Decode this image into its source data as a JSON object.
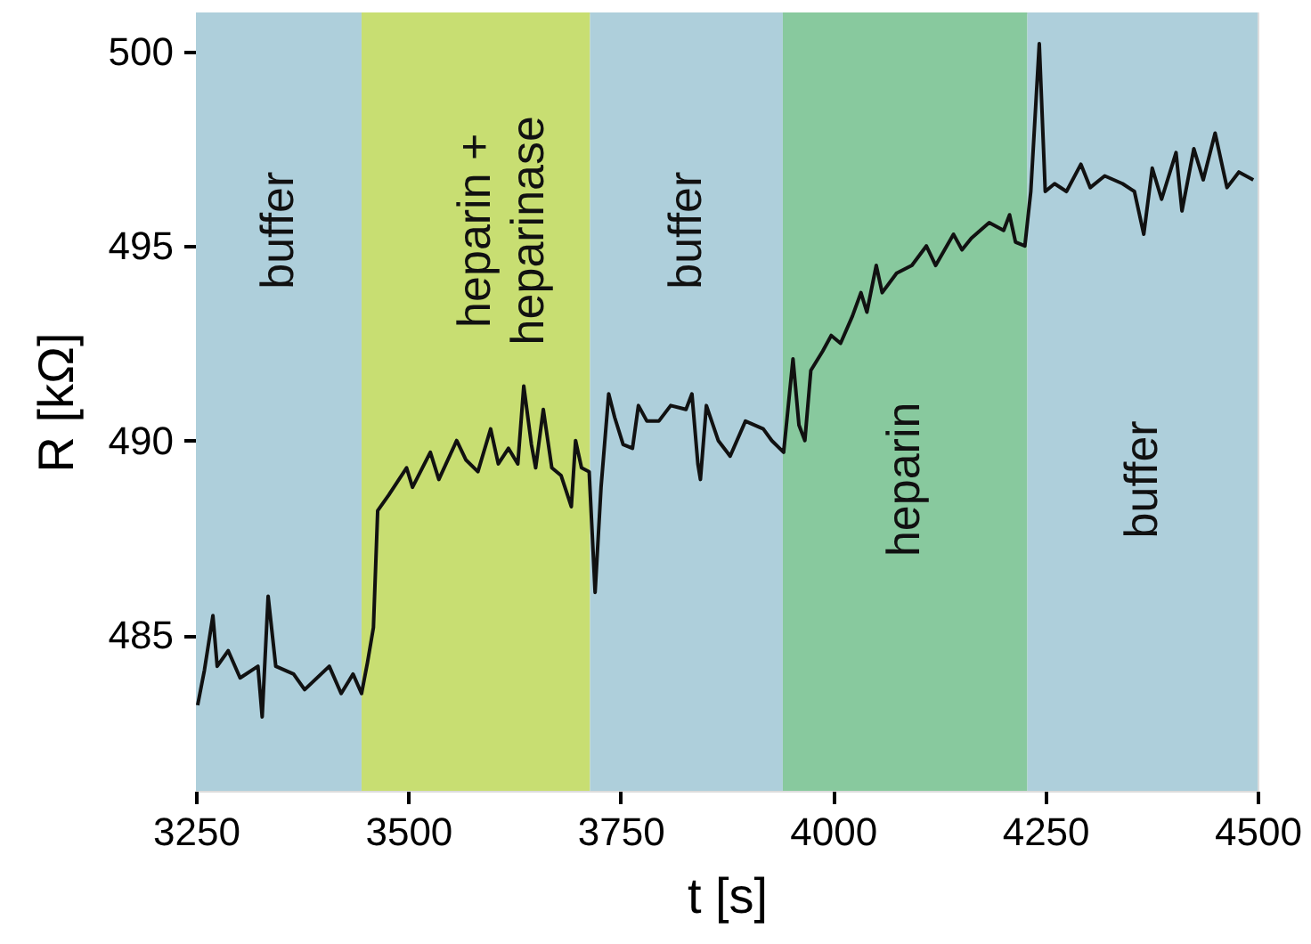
{
  "chart_data": {
    "type": "line",
    "xlabel": "t [s]",
    "ylabel": "R [kΩ]",
    "xlim": [
      3250,
      4500
    ],
    "xticks": [
      3250,
      3500,
      3750,
      4000,
      4250,
      4500
    ],
    "ylim": [
      481,
      501
    ],
    "yticks": [
      485,
      490,
      495,
      500
    ],
    "grid": false,
    "marker": "none",
    "line_style": "solid",
    "bands": [
      {
        "axis": "x",
        "from": 3250,
        "to": 3445,
        "label": "buffer",
        "color": "#aecfdb"
      },
      {
        "axis": "x",
        "from": 3445,
        "to": 3714,
        "label": "heparin +\nheparinase",
        "color": "#c8de72"
      },
      {
        "axis": "x",
        "from": 3714,
        "to": 3941,
        "label": "buffer",
        "color": "#aecfdb"
      },
      {
        "axis": "x",
        "from": 3941,
        "to": 4229,
        "label": "heparin",
        "color": "#88c99e"
      },
      {
        "axis": "x",
        "from": 4229,
        "to": 4500,
        "label": "buffer",
        "color": "#aecfdb"
      }
    ],
    "series": [
      {
        "color": "#111111",
        "x": [
          3252,
          3260,
          3270,
          3275,
          3288,
          3302,
          3323,
          3328,
          3335,
          3344,
          3365,
          3378,
          3407,
          3421,
          3435,
          3445,
          3452,
          3459,
          3464,
          3477,
          3498,
          3505,
          3526,
          3536,
          3557,
          3568,
          3582,
          3597,
          3606,
          3618,
          3629,
          3636,
          3645,
          3650,
          3659,
          3669,
          3680,
          3692,
          3697,
          3704,
          3713,
          3720,
          3727,
          3736,
          3743,
          3753,
          3764,
          3771,
          3781,
          3795,
          3809,
          3827,
          3834,
          3841,
          3844,
          3851,
          3865,
          3879,
          3897,
          3918,
          3928,
          3942,
          3953,
          3960,
          3967,
          3974,
          3988,
          3998,
          4009,
          4023,
          4033,
          4040,
          4051,
          4058,
          4075,
          4093,
          4110,
          4121,
          4142,
          4152,
          4163,
          4184,
          4201,
          4208,
          4215,
          4226,
          4233,
          4243,
          4250,
          4261,
          4275,
          4292,
          4303,
          4320,
          4341,
          4355,
          4366,
          4376,
          4387,
          4404,
          4411,
          4425,
          4436,
          4450,
          4464,
          4478,
          4495
        ],
        "values": [
          483.2,
          484.1,
          485.5,
          484.2,
          484.6,
          483.9,
          484.2,
          482.9,
          486.0,
          484.2,
          484.0,
          483.6,
          484.2,
          483.5,
          484.0,
          483.5,
          484.3,
          485.2,
          488.2,
          488.6,
          489.3,
          488.8,
          489.7,
          489.0,
          490.0,
          489.5,
          489.2,
          490.3,
          489.4,
          489.8,
          489.4,
          491.4,
          489.9,
          489.3,
          490.8,
          489.3,
          489.1,
          488.3,
          490.0,
          489.3,
          489.2,
          486.1,
          488.8,
          491.2,
          490.6,
          489.9,
          489.8,
          490.9,
          490.5,
          490.5,
          490.9,
          490.8,
          491.2,
          489.4,
          489.0,
          490.9,
          490.0,
          489.6,
          490.5,
          490.3,
          490.0,
          489.7,
          492.1,
          490.4,
          490.0,
          491.8,
          492.3,
          492.7,
          492.5,
          493.2,
          493.8,
          493.3,
          494.5,
          493.8,
          494.3,
          494.5,
          495.0,
          494.5,
          495.3,
          494.9,
          495.2,
          495.6,
          495.4,
          495.8,
          495.1,
          495.0,
          496.4,
          500.2,
          496.4,
          496.6,
          496.4,
          497.1,
          496.5,
          496.8,
          496.6,
          496.4,
          495.3,
          497.0,
          496.2,
          497.4,
          495.9,
          497.5,
          496.7,
          497.9,
          496.5,
          496.9,
          496.7
        ]
      }
    ]
  }
}
